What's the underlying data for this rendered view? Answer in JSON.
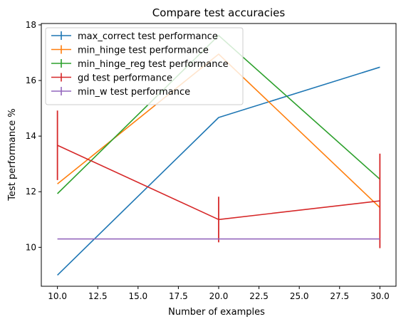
{
  "chart_data": {
    "type": "line",
    "title": "Compare test accuracies",
    "xlabel": "Number of examples",
    "ylabel": "Test performance %",
    "xlim": [
      9.0,
      31.0
    ],
    "ylim": [
      8.6,
      18.05
    ],
    "xticks": [
      10.0,
      12.5,
      15.0,
      17.5,
      20.0,
      22.5,
      25.0,
      27.5,
      30.0
    ],
    "xtick_labels": [
      "10.0",
      "12.5",
      "15.0",
      "17.5",
      "20.0",
      "22.5",
      "25.0",
      "27.5",
      "30.0"
    ],
    "yticks": [
      10,
      12,
      14,
      16,
      18
    ],
    "ytick_labels": [
      "10",
      "12",
      "14",
      "16",
      "18"
    ],
    "grid": false,
    "legend_position": "top-left",
    "x": [
      10,
      20,
      30
    ],
    "series": [
      {
        "name": "max_correct test performance",
        "color": "#1f77b4",
        "values": [
          9.0,
          14.67,
          16.48
        ],
        "errors": [
          0,
          0,
          0
        ]
      },
      {
        "name": "min_hinge test performance",
        "color": "#ff7f0e",
        "values": [
          12.28,
          16.95,
          11.43
        ],
        "errors": [
          0,
          0,
          0
        ]
      },
      {
        "name": "min_hinge_reg test performance",
        "color": "#2ca02c",
        "values": [
          11.93,
          17.62,
          12.45
        ],
        "errors": [
          0,
          0,
          0
        ]
      },
      {
        "name": "gd test performance",
        "color": "#d62728",
        "values": [
          13.67,
          11.0,
          11.67
        ],
        "errors": [
          1.25,
          0.82,
          1.7
        ]
      },
      {
        "name": "min_w test performance",
        "color": "#9467bd",
        "values": [
          10.3,
          10.3,
          10.3
        ],
        "errors": [
          0,
          0,
          0
        ]
      }
    ]
  }
}
